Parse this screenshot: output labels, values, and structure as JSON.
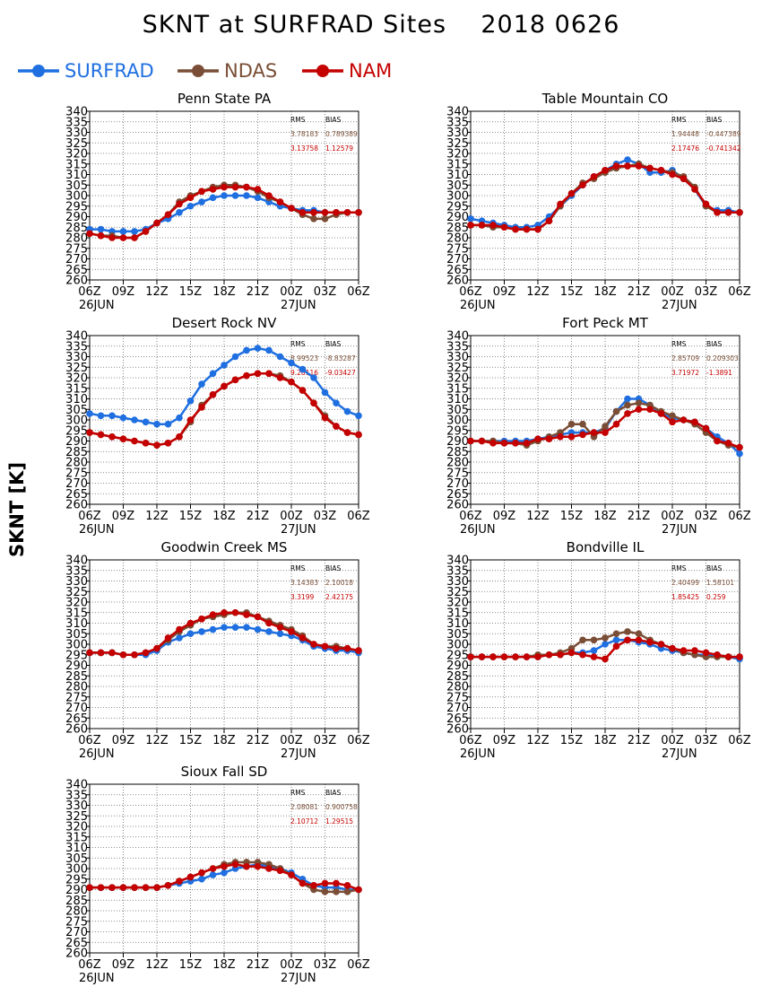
{
  "title": "SKNT at SURFRAD Sites",
  "date": "2018 0626",
  "ylabel": "SKNT [K]",
  "colors": {
    "SURFRAD": "#1f6fe0",
    "NDAS": "#7a4e36",
    "NAM": "#c40000"
  },
  "chart_data": [
    {
      "type": "line",
      "title": "Penn State PA",
      "ylim": [
        260,
        340
      ],
      "yticks": [
        260,
        265,
        270,
        275,
        280,
        285,
        290,
        295,
        300,
        305,
        310,
        315,
        320,
        325,
        330,
        335,
        340
      ],
      "xticks": [
        "06Z",
        "09Z",
        "12Z",
        "15Z",
        "18Z",
        "21Z",
        "00Z",
        "03Z",
        "06Z"
      ],
      "xdates": [
        "26JUN",
        "27JUN"
      ],
      "stats": {
        "headers": [
          "RMS",
          "BIAS"
        ],
        "rows": [
          [
            "3.78183",
            "0.789389"
          ],
          [
            "3.13758",
            "1.12579"
          ]
        ]
      },
      "series": [
        {
          "name": "SURFRAD",
          "values": [
            284,
            284,
            283,
            283,
            283,
            284,
            287,
            289,
            292,
            295,
            297,
            299,
            300,
            300,
            300,
            299,
            297,
            295,
            294,
            293,
            293,
            292,
            292,
            292,
            292
          ]
        },
        {
          "name": "NDAS",
          "values": [
            282,
            281,
            281,
            280,
            280,
            283,
            287,
            291,
            297,
            300,
            302,
            304,
            305,
            305,
            304,
            302,
            299,
            297,
            294,
            291,
            289,
            289,
            291,
            292,
            292
          ]
        },
        {
          "name": "NAM",
          "values": [
            282,
            281,
            280,
            280,
            280,
            283,
            287,
            291,
            296,
            299,
            302,
            303,
            304,
            304,
            304,
            303,
            300,
            297,
            294,
            292,
            292,
            292,
            292,
            292,
            292
          ]
        }
      ]
    },
    {
      "type": "line",
      "title": "Table Mountain CO",
      "ylim": [
        260,
        340
      ],
      "yticks": [
        260,
        265,
        270,
        275,
        280,
        285,
        290,
        295,
        300,
        305,
        310,
        315,
        320,
        325,
        330,
        335,
        340
      ],
      "xticks": [
        "06Z",
        "09Z",
        "12Z",
        "15Z",
        "18Z",
        "21Z",
        "00Z",
        "03Z",
        "06Z"
      ],
      "xdates": [
        "26JUN",
        "27JUN"
      ],
      "stats": {
        "headers": [
          "RMS",
          "BIAS"
        ],
        "rows": [
          [
            "1.94448",
            "-0.447389"
          ],
          [
            "2.17476",
            "-0.741342"
          ]
        ]
      },
      "series": [
        {
          "name": "SURFRAD",
          "values": [
            289,
            288,
            287,
            286,
            285,
            285,
            286,
            290,
            295,
            300,
            305,
            309,
            312,
            315,
            317,
            315,
            311,
            311,
            312,
            308,
            303,
            295,
            293,
            293,
            292
          ]
        },
        {
          "name": "NDAS",
          "values": [
            286,
            286,
            285,
            285,
            284,
            284,
            284,
            288,
            295,
            301,
            306,
            308,
            311,
            313,
            314,
            315,
            313,
            312,
            311,
            309,
            304,
            295,
            292,
            292,
            292
          ]
        },
        {
          "name": "NAM",
          "values": [
            286,
            286,
            286,
            285,
            284,
            284,
            284,
            288,
            296,
            301,
            305,
            309,
            312,
            314,
            314,
            314,
            313,
            312,
            310,
            308,
            303,
            296,
            292,
            292,
            292
          ]
        }
      ]
    },
    {
      "type": "line",
      "title": "Desert Rock NV",
      "ylim": [
        260,
        340
      ],
      "yticks": [
        260,
        265,
        270,
        275,
        280,
        285,
        290,
        295,
        300,
        305,
        310,
        315,
        320,
        325,
        330,
        335,
        340
      ],
      "xticks": [
        "06Z",
        "09Z",
        "12Z",
        "15Z",
        "18Z",
        "21Z",
        "00Z",
        "03Z",
        "06Z"
      ],
      "xdates": [
        "26JUN",
        "27JUN"
      ],
      "stats": {
        "headers": [
          "RMS",
          "BIAS"
        ],
        "rows": [
          [
            "8.99523",
            "-8.83287"
          ],
          [
            "9.28116",
            "-9.03427"
          ]
        ]
      },
      "series": [
        {
          "name": "SURFRAD",
          "values": [
            303,
            302,
            302,
            301,
            300,
            299,
            298,
            298,
            301,
            309,
            317,
            322,
            326,
            330,
            333,
            334,
            333,
            330,
            327,
            324,
            320,
            313,
            308,
            304,
            302
          ]
        },
        {
          "name": "NDAS",
          "values": [
            294,
            293,
            292,
            291,
            290,
            289,
            288,
            289,
            292,
            299,
            307,
            312,
            316,
            319,
            321,
            322,
            322,
            321,
            318,
            314,
            308,
            302,
            297,
            294,
            293
          ]
        },
        {
          "name": "NAM",
          "values": [
            294,
            293,
            292,
            291,
            290,
            289,
            288,
            289,
            292,
            300,
            306,
            312,
            316,
            319,
            321,
            322,
            322,
            320,
            318,
            314,
            308,
            301,
            297,
            294,
            293
          ]
        }
      ]
    },
    {
      "type": "line",
      "title": "Fort Peck MT",
      "ylim": [
        260,
        340
      ],
      "yticks": [
        260,
        265,
        270,
        275,
        280,
        285,
        290,
        295,
        300,
        305,
        310,
        315,
        320,
        325,
        330,
        335,
        340
      ],
      "xticks": [
        "06Z",
        "09Z",
        "12Z",
        "15Z",
        "18Z",
        "21Z",
        "00Z",
        "03Z",
        "06Z"
      ],
      "xdates": [
        "26JUN",
        "27JUN"
      ],
      "stats": {
        "headers": [
          "RMS",
          "BIAS"
        ],
        "rows": [
          [
            "2.85709",
            "0.209303"
          ],
          [
            "3.71972",
            "-1.3891"
          ]
        ]
      },
      "series": [
        {
          "name": "SURFRAD",
          "values": [
            290,
            290,
            290,
            290,
            290,
            290,
            291,
            292,
            293,
            294,
            294,
            294,
            296,
            304,
            310,
            310,
            307,
            303,
            301,
            300,
            299,
            296,
            292,
            289,
            284
          ]
        },
        {
          "name": "NDAS",
          "values": [
            290,
            290,
            290,
            289,
            289,
            288,
            290,
            292,
            294,
            298,
            298,
            292,
            297,
            304,
            307,
            308,
            307,
            304,
            302,
            300,
            298,
            294,
            290,
            288,
            287
          ]
        },
        {
          "name": "NAM",
          "values": [
            290,
            290,
            289,
            289,
            289,
            289,
            291,
            291,
            292,
            292,
            293,
            294,
            294,
            298,
            303,
            305,
            305,
            303,
            299,
            300,
            299,
            296,
            290,
            289,
            287
          ]
        }
      ]
    },
    {
      "type": "line",
      "title": "Goodwin Creek MS",
      "ylim": [
        260,
        340
      ],
      "yticks": [
        260,
        265,
        270,
        275,
        280,
        285,
        290,
        295,
        300,
        305,
        310,
        315,
        320,
        325,
        330,
        335,
        340
      ],
      "xticks": [
        "06Z",
        "09Z",
        "12Z",
        "15Z",
        "18Z",
        "21Z",
        "00Z",
        "03Z",
        "06Z"
      ],
      "xdates": [
        "26JUN",
        "27JUN"
      ],
      "stats": {
        "headers": [
          "RMS",
          "BIAS"
        ],
        "rows": [
          [
            "3.14383",
            "2.10018"
          ],
          [
            "3.3199",
            "2.42175"
          ]
        ]
      },
      "series": [
        {
          "name": "SURFRAD",
          "values": [
            296,
            296,
            296,
            295,
            295,
            295,
            297,
            301,
            303,
            305,
            306,
            307,
            308,
            308,
            308,
            307,
            306,
            305,
            304,
            302,
            299,
            298,
            297,
            297,
            296
          ]
        },
        {
          "name": "NDAS",
          "values": [
            296,
            296,
            296,
            295,
            295,
            296,
            298,
            302,
            306,
            309,
            312,
            313,
            314,
            315,
            315,
            313,
            311,
            309,
            307,
            304,
            300,
            299,
            299,
            298,
            297
          ]
        },
        {
          "name": "NAM",
          "values": [
            296,
            296,
            296,
            295,
            295,
            296,
            298,
            303,
            307,
            310,
            312,
            314,
            315,
            315,
            314,
            313,
            310,
            308,
            306,
            303,
            300,
            299,
            298,
            298,
            297
          ]
        }
      ]
    },
    {
      "type": "line",
      "title": "Bondville IL",
      "ylim": [
        260,
        340
      ],
      "yticks": [
        260,
        265,
        270,
        275,
        280,
        285,
        290,
        295,
        300,
        305,
        310,
        315,
        320,
        325,
        330,
        335,
        340
      ],
      "xticks": [
        "06Z",
        "09Z",
        "12Z",
        "15Z",
        "18Z",
        "21Z",
        "00Z",
        "03Z",
        "06Z"
      ],
      "xdates": [
        "26JUN",
        "27JUN"
      ],
      "stats": {
        "headers": [
          "RMS",
          "BIAS"
        ],
        "rows": [
          [
            "2.40499",
            "1.58101"
          ],
          [
            "1.85425",
            "0.259"
          ]
        ]
      },
      "series": [
        {
          "name": "SURFRAD",
          "values": [
            294,
            294,
            294,
            294,
            294,
            294,
            294,
            295,
            295,
            296,
            296,
            297,
            300,
            302,
            302,
            301,
            300,
            298,
            297,
            296,
            295,
            295,
            295,
            294,
            293
          ]
        },
        {
          "name": "NDAS",
          "values": [
            294,
            294,
            294,
            294,
            294,
            294,
            295,
            295,
            296,
            298,
            302,
            302,
            303,
            305,
            306,
            305,
            302,
            300,
            298,
            296,
            295,
            294,
            294,
            294,
            294
          ]
        },
        {
          "name": "NAM",
          "values": [
            294,
            294,
            294,
            294,
            294,
            294,
            294,
            295,
            295,
            296,
            295,
            294,
            293,
            299,
            302,
            302,
            301,
            300,
            298,
            297,
            297,
            296,
            295,
            294,
            294
          ]
        }
      ]
    },
    {
      "type": "line",
      "title": "Sioux Fall SD",
      "ylim": [
        260,
        340
      ],
      "yticks": [
        260,
        265,
        270,
        275,
        280,
        285,
        290,
        295,
        300,
        305,
        310,
        315,
        320,
        325,
        330,
        335,
        340
      ],
      "xticks": [
        "06Z",
        "09Z",
        "12Z",
        "15Z",
        "18Z",
        "21Z",
        "00Z",
        "03Z",
        "06Z"
      ],
      "xdates": [
        "26JUN",
        "27JUN"
      ],
      "stats": {
        "headers": [
          "RMS",
          "BIAS"
        ],
        "rows": [
          [
            "2.08081",
            "0.900758"
          ],
          [
            "2.10712",
            "1.29515"
          ]
        ]
      },
      "series": [
        {
          "name": "SURFRAD",
          "values": [
            291,
            291,
            291,
            291,
            291,
            291,
            291,
            292,
            293,
            294,
            295,
            297,
            298,
            300,
            301,
            302,
            301,
            300,
            298,
            295,
            292,
            291,
            291,
            290,
            290
          ]
        },
        {
          "name": "NDAS",
          "values": [
            291,
            291,
            291,
            291,
            291,
            291,
            291,
            292,
            294,
            296,
            298,
            300,
            302,
            303,
            303,
            303,
            302,
            300,
            297,
            293,
            290,
            289,
            289,
            289,
            290
          ]
        },
        {
          "name": "NAM",
          "values": [
            291,
            291,
            291,
            291,
            291,
            291,
            291,
            292,
            294,
            296,
            298,
            300,
            301,
            302,
            301,
            301,
            300,
            299,
            297,
            293,
            292,
            293,
            293,
            292,
            290
          ]
        }
      ]
    }
  ]
}
